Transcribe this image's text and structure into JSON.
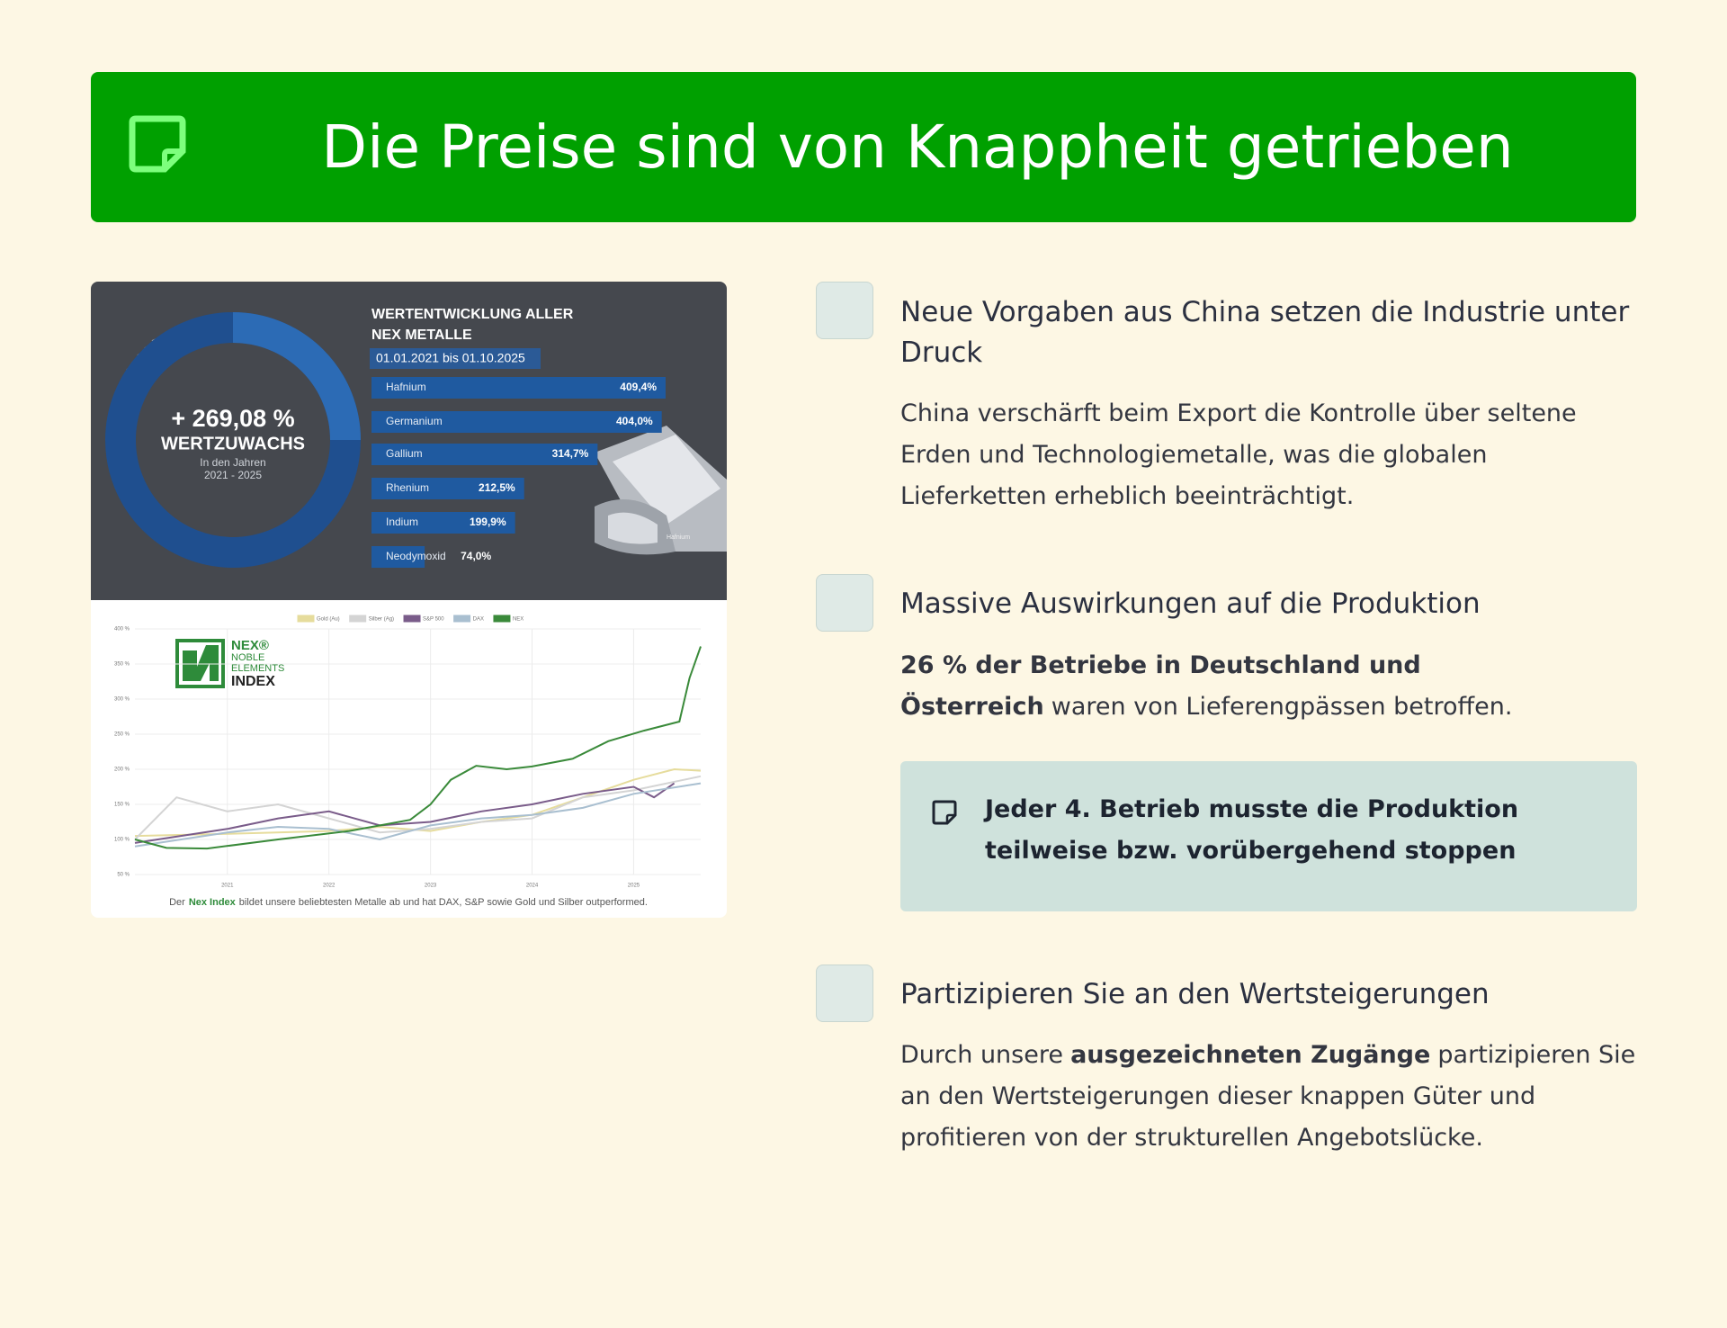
{
  "header": {
    "title": "Die Preise sind von Knappheit getrieben"
  },
  "infographic": {
    "donut": {
      "value": "+ 269,08 %",
      "label": "WERTZUWACHS",
      "period": "In den Jahren",
      "years": "2021 - 2025"
    },
    "title": [
      "WERTENTWICKLUNG ALLER",
      "NEX METALLE"
    ],
    "date_range": "01.01.2021 bis 01.10.2025",
    "bars": {
      "type": "bar",
      "categories": [
        "Hafnium",
        "Germanium",
        "Gallium",
        "Rhenium",
        "Indium",
        "Neodymoxid"
      ],
      "values": [
        409.4,
        404.0,
        314.7,
        212.5,
        199.9,
        74.0
      ],
      "value_labels": [
        "409,4%",
        "404,0%",
        "314,7%",
        "212,5%",
        "199,9%",
        "74,0%"
      ],
      "color": "#1f5aa0"
    },
    "photo_caption": "Hafnium",
    "chart": {
      "type": "line",
      "logo": [
        "NEX®",
        "NOBLE",
        "ELEMENTS",
        "INDEX"
      ],
      "xlim": [
        2020.09,
        2025.66
      ],
      "xticks": [
        2021,
        2022,
        2023,
        2024,
        2025
      ],
      "ylim": [
        50,
        400
      ],
      "yticks": [
        {
          "value": 50,
          "label": "50 %"
        },
        {
          "value": 100,
          "label": "100 %"
        },
        {
          "value": 150,
          "label": "150 %"
        },
        {
          "value": 200,
          "label": "200 %"
        },
        {
          "value": 250,
          "label": "250 %"
        },
        {
          "value": 300,
          "label": "300 %"
        },
        {
          "value": 350,
          "label": "350 %"
        },
        {
          "value": 400,
          "label": "400 %"
        }
      ],
      "grid": true,
      "series": [
        {
          "name": "Gold (Au)",
          "color": "#e6dc9c",
          "x": [
            2020.09,
            2021,
            2022,
            2022.5,
            2023,
            2023.5,
            2024,
            2024.5,
            2025,
            2025.4,
            2025.66
          ],
          "values": [
            105,
            108,
            112,
            118,
            112,
            125,
            135,
            160,
            185,
            200,
            198
          ]
        },
        {
          "name": "Silber (Ag)",
          "color": "#d4d4d4",
          "x": [
            2020.09,
            2020.5,
            2021,
            2021.5,
            2022,
            2022.5,
            2023,
            2023.5,
            2024,
            2024.5,
            2025,
            2025.66
          ],
          "values": [
            100,
            160,
            140,
            150,
            130,
            110,
            115,
            125,
            130,
            160,
            170,
            190
          ]
        },
        {
          "name": "S&P 500",
          "color": "#7a5c8a",
          "x": [
            2020.09,
            2021,
            2021.5,
            2022,
            2022.5,
            2023,
            2023.5,
            2024,
            2024.5,
            2025,
            2025.2,
            2025.4
          ],
          "values": [
            95,
            115,
            130,
            140,
            120,
            125,
            140,
            150,
            165,
            175,
            160,
            180
          ]
        },
        {
          "name": "DAX",
          "color": "#a9bfd0",
          "x": [
            2020.09,
            2021,
            2021.5,
            2022,
            2022.5,
            2023,
            2023.5,
            2024,
            2024.5,
            2025,
            2025.66
          ],
          "values": [
            90,
            110,
            118,
            115,
            100,
            120,
            130,
            135,
            145,
            165,
            180
          ]
        },
        {
          "name": "NEX",
          "color": "#3a8a3a",
          "x": [
            2020.09,
            2020.4,
            2020.8,
            2021.5,
            2022.2,
            2022.8,
            2023.0,
            2023.2,
            2023.45,
            2023.75,
            2024.0,
            2024.4,
            2024.75,
            2025.1,
            2025.45,
            2025.55,
            2025.66
          ],
          "values": [
            100,
            88,
            87,
            100,
            112,
            128,
            150,
            185,
            205,
            200,
            204,
            215,
            240,
            255,
            268,
            330,
            375
          ]
        }
      ]
    },
    "caption": [
      "Der",
      "Nex Index",
      "bildet unsere beliebtesten Metalle ab und hat DAX, S&P sowie Gold und Silber outperformed."
    ]
  },
  "items": [
    {
      "title": "Neue Vorgaben aus China setzen die Industrie unter Druck",
      "text": [
        {
          "text": "China verschärft beim Export die Kontrolle über seltene Erden und Technologiemetalle, was die globalen Lieferketten erheblich beeinträchtigt."
        }
      ]
    },
    {
      "title": "Massive Auswirkungen auf die Produktion",
      "text": [
        {
          "text": "26 % der Betriebe in Deutschland und Österreich",
          "bold": true
        },
        {
          "text": "waren von Lieferengpässen betroffen."
        }
      ]
    },
    {
      "title": "Partizipieren Sie an den Wertsteigerungen",
      "text": [
        {
          "text": "Durch unsere"
        },
        {
          "text": "ausgezeichneten Zugänge",
          "bold": true
        },
        {
          "text": "partizipieren Sie an den Wertsteigerungen dieser knappen Güter und profitieren von der strukturellen Angebotslücke."
        }
      ]
    }
  ],
  "callout": "Jeder 4. Betrieb musste die Produktion teilweise bzw. vorübergehend stoppen"
}
